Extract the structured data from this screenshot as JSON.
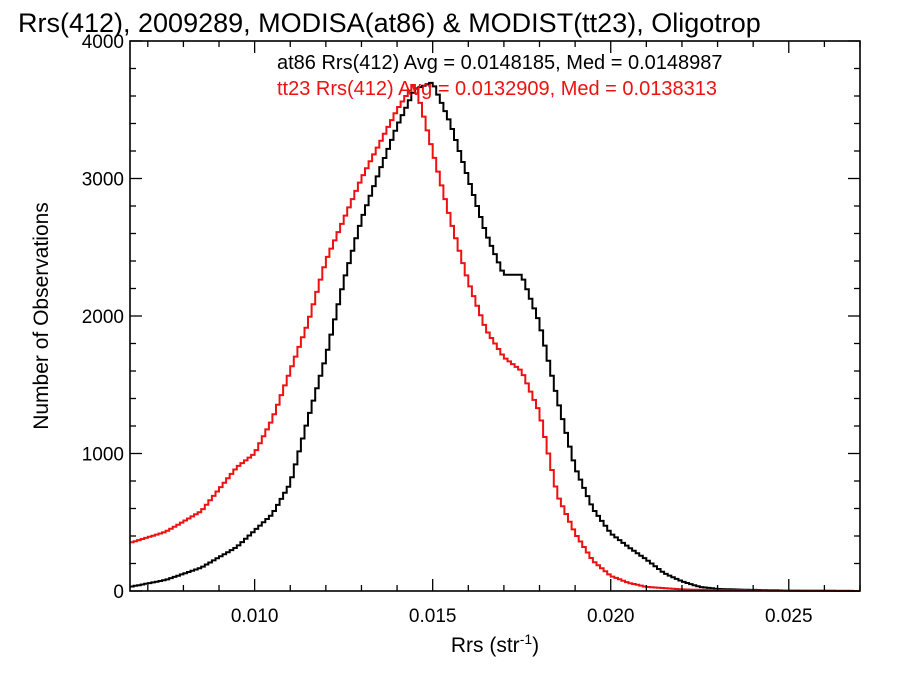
{
  "chart_data": {
    "type": "line",
    "title": "Rrs(412), 2009289, MODISA(at86) & MODIST(tt23), Oligotrop",
    "xlabel_main": "Rrs (str",
    "xlabel_sup": "-1",
    "xlabel_end": ")",
    "ylabel": "Number of Observations",
    "xlim": [
      0.0065,
      0.027
    ],
    "ylim": [
      0,
      4000
    ],
    "xticks": [
      0.01,
      0.015,
      0.02,
      0.025
    ],
    "xtick_labels": [
      "0.010",
      "0.015",
      "0.020",
      "0.025"
    ],
    "yticks": [
      0,
      1000,
      2000,
      3000,
      4000
    ],
    "ytick_labels": [
      "0",
      "1000",
      "2000",
      "3000",
      "4000"
    ],
    "grid": false,
    "legend_position": "top-right",
    "series": [
      {
        "label": "at86 Rrs(412) Avg = 0.0148185, Med = 0.0148987",
        "color": "#000000",
        "points": [
          [
            0.0065,
            30
          ],
          [
            0.0075,
            80
          ],
          [
            0.0085,
            170
          ],
          [
            0.0095,
            320
          ],
          [
            0.0105,
            560
          ],
          [
            0.011,
            780
          ],
          [
            0.0115,
            1250
          ],
          [
            0.012,
            1700
          ],
          [
            0.0125,
            2250
          ],
          [
            0.013,
            2700
          ],
          [
            0.0135,
            3050
          ],
          [
            0.014,
            3380
          ],
          [
            0.0145,
            3650
          ],
          [
            0.015,
            3700
          ],
          [
            0.0155,
            3400
          ],
          [
            0.016,
            3000
          ],
          [
            0.0165,
            2600
          ],
          [
            0.017,
            2300
          ],
          [
            0.0175,
            2300
          ],
          [
            0.018,
            1950
          ],
          [
            0.0185,
            1400
          ],
          [
            0.019,
            900
          ],
          [
            0.0195,
            600
          ],
          [
            0.02,
            420
          ],
          [
            0.0205,
            320
          ],
          [
            0.021,
            230
          ],
          [
            0.0215,
            130
          ],
          [
            0.022,
            70
          ],
          [
            0.0225,
            30
          ],
          [
            0.023,
            15
          ],
          [
            0.024,
            8
          ],
          [
            0.025,
            3
          ],
          [
            0.027,
            0
          ]
        ]
      },
      {
        "label": "tt23 Rrs(412) Avg = 0.0132909, Med = 0.0138313",
        "color": "#ee1111",
        "points": [
          [
            0.0065,
            350
          ],
          [
            0.0075,
            430
          ],
          [
            0.0085,
            580
          ],
          [
            0.0095,
            900
          ],
          [
            0.01,
            1000
          ],
          [
            0.0105,
            1250
          ],
          [
            0.011,
            1600
          ],
          [
            0.0115,
            1950
          ],
          [
            0.012,
            2400
          ],
          [
            0.0125,
            2700
          ],
          [
            0.013,
            3000
          ],
          [
            0.0135,
            3250
          ],
          [
            0.014,
            3500
          ],
          [
            0.0145,
            3700
          ],
          [
            0.015,
            3200
          ],
          [
            0.0155,
            2700
          ],
          [
            0.016,
            2250
          ],
          [
            0.0165,
            1900
          ],
          [
            0.017,
            1700
          ],
          [
            0.0175,
            1600
          ],
          [
            0.018,
            1300
          ],
          [
            0.0185,
            700
          ],
          [
            0.019,
            420
          ],
          [
            0.0195,
            220
          ],
          [
            0.02,
            110
          ],
          [
            0.0205,
            60
          ],
          [
            0.021,
            30
          ],
          [
            0.022,
            12
          ],
          [
            0.023,
            5
          ],
          [
            0.027,
            0
          ]
        ]
      }
    ]
  }
}
